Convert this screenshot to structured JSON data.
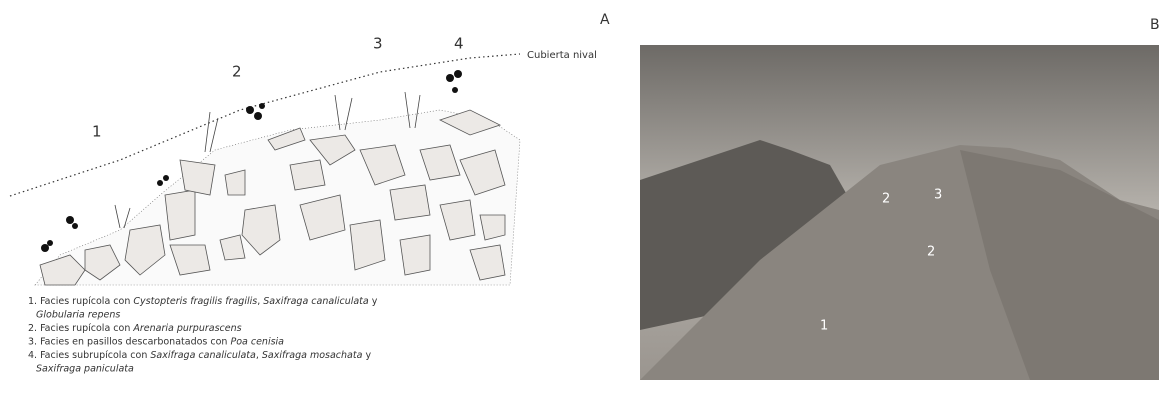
{
  "panel_a": {
    "label": "A",
    "zone_labels": [
      "1",
      "2",
      "3",
      "4"
    ],
    "snow_label": "Cubierta nival",
    "legend": [
      [
        {
          "text": "1. Facies rupícola con "
        },
        {
          "text": "Cystopteris fragilis fragilis",
          "italic": true
        },
        {
          "text": ", "
        },
        {
          "text": "Saxifraga canaliculata",
          "italic": true
        },
        {
          "text": " y"
        }
      ],
      [
        {
          "text": "Globularia repens",
          "italic": true
        }
      ],
      [
        {
          "text": "2. Facies rupícola con "
        },
        {
          "text": "Arenaria purpurascens",
          "italic": true
        }
      ],
      [
        {
          "text": "3. Facies en pasillos descarbonatados con "
        },
        {
          "text": "Poa cenisia",
          "italic": true
        }
      ],
      [
        {
          "text": "4. Facies subrupícola con "
        },
        {
          "text": "Saxifraga canaliculata",
          "italic": true
        },
        {
          "text": ", "
        },
        {
          "text": "Saxifraga mosachata",
          "italic": true
        },
        {
          "text": " y"
        }
      ],
      [
        {
          "text": "Saxifraga paniculata",
          "italic": true
        }
      ]
    ]
  },
  "panel_b": {
    "label": "B",
    "photo_labels": [
      "2",
      "3",
      "2",
      "1"
    ]
  }
}
